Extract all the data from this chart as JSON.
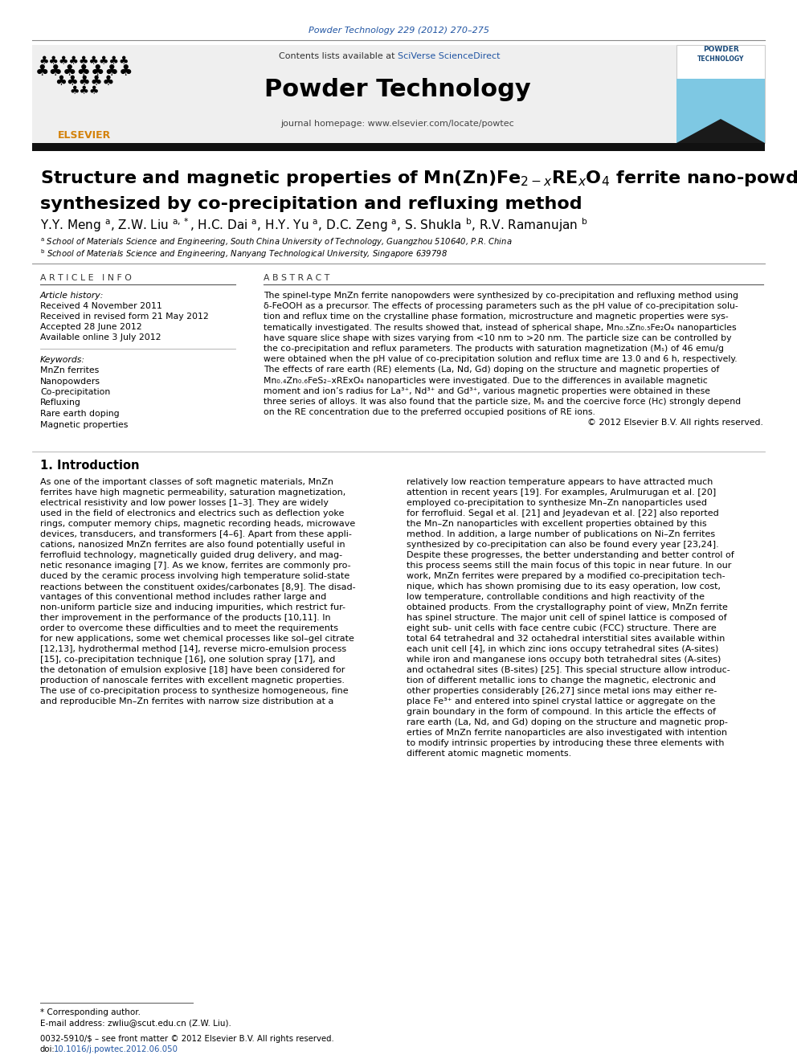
{
  "journal_ref": "Powder Technology 229 (2012) 270–275",
  "journal_ref_color": "#2155a3",
  "contents_line": "Contents lists available at ",
  "sciverse_text": "SciVerse ScienceDirect",
  "sciverse_color": "#2155a3",
  "journal_name": "Powder Technology",
  "journal_homepage": "journal homepage: www.elsevier.com/locate/powtec",
  "article_info_header": "A R T I C L E   I N F O",
  "abstract_header": "A B S T R A C T",
  "article_history_label": "Article history:",
  "received1": "Received 4 November 2011",
  "received2": "Received in revised form 21 May 2012",
  "accepted": "Accepted 28 June 2012",
  "available": "Available online 3 July 2012",
  "keywords_label": "Keywords:",
  "keywords": [
    "MnZn ferrites",
    "Nanopowders",
    "Co-precipitation",
    "Refluxing",
    "Rare earth doping",
    "Magnetic properties"
  ],
  "intro_header": "1. Introduction",
  "footnote_corresponding": "* Corresponding author.",
  "footnote_email": "E-mail address: zwliu@scut.edu.cn (Z.W. Liu).",
  "footer1": "0032-5910/$ – see front matter © 2012 Elsevier B.V. All rights reserved.",
  "footer2_prefix": "doi:",
  "footer2_link": "10.1016/j.powtec.2012.06.050",
  "bg_color": "#ffffff",
  "header_bg": "#f0f0f0",
  "text_color": "#000000",
  "blue_color": "#2155a3",
  "intro_col1_lines": [
    "As one of the important classes of soft magnetic materials, MnZn",
    "ferrites have high magnetic permeability, saturation magnetization,",
    "electrical resistivity and low power losses [1–3]. They are widely",
    "used in the field of electronics and electrics such as deflection yoke",
    "rings, computer memory chips, magnetic recording heads, microwave",
    "devices, transducers, and transformers [4–6]. Apart from these appli-",
    "cations, nanosized MnZn ferrites are also found potentially useful in",
    "ferrofluid technology, magnetically guided drug delivery, and mag-",
    "netic resonance imaging [7]. As we know, ferrites are commonly pro-",
    "duced by the ceramic process involving high temperature solid-state",
    "reactions between the constituent oxides/carbonates [8,9]. The disad-",
    "vantages of this conventional method includes rather large and",
    "non-uniform particle size and inducing impurities, which restrict fur-",
    "ther improvement in the performance of the products [10,11]. In",
    "order to overcome these difficulties and to meet the requirements",
    "for new applications, some wet chemical processes like sol–gel citrate",
    "[12,13], hydrothermal method [14], reverse micro-emulsion process",
    "[15], co-precipitation technique [16], one solution spray [17], and",
    "the detonation of emulsion explosive [18] have been considered for",
    "production of nanoscale ferrites with excellent magnetic properties.",
    "The use of co-precipitation process to synthesize homogeneous, fine",
    "and reproducible Mn–Zn ferrites with narrow size distribution at a"
  ],
  "intro_col2_lines": [
    "relatively low reaction temperature appears to have attracted much",
    "attention in recent years [19]. For examples, Arulmurugan et al. [20]",
    "employed co-precipitation to synthesize Mn–Zn nanoparticles used",
    "for ferrofluid. Segal et al. [21] and Jeyadevan et al. [22] also reported",
    "the Mn–Zn nanoparticles with excellent properties obtained by this",
    "method. In addition, a large number of publications on Ni–Zn ferrites",
    "synthesized by co-precipitation can also be found every year [23,24].",
    "Despite these progresses, the better understanding and better control of",
    "this process seems still the main focus of this topic in near future. In our",
    "work, MnZn ferrites were prepared by a modified co-precipitation tech-",
    "nique, which has shown promising due to its easy operation, low cost,",
    "low temperature, controllable conditions and high reactivity of the",
    "obtained products. From the crystallography point of view, MnZn ferrite",
    "has spinel structure. The major unit cell of spinel lattice is composed of",
    "eight sub- unit cells with face centre cubic (FCC) structure. There are",
    "total 64 tetrahedral and 32 octahedral interstitial sites available within",
    "each unit cell [4], in which zinc ions occupy tetrahedral sites (A-sites)",
    "while iron and manganese ions occupy both tetrahedral sites (A-sites)",
    "and octahedral sites (B-sites) [25]. This special structure allow introduc-",
    "tion of different metallic ions to change the magnetic, electronic and",
    "other properties considerably [26,27] since metal ions may either re-",
    "place Fe³⁺ and entered into spinel crystal lattice or aggregate on the",
    "grain boundary in the form of compound. In this article the effects of",
    "rare earth (La, Nd, and Gd) doping on the structure and magnetic prop-",
    "erties of MnZn ferrite nanoparticles are also investigated with intention",
    "to modify intrinsic properties by introducing these three elements with",
    "different atomic magnetic moments."
  ],
  "abstract_lines": [
    "The spinel-type MnZn ferrite nanopowders were synthesized by co-precipitation and refluxing method using",
    "δ-FeOOH as a precursor. The effects of processing parameters such as the pH value of co-precipitation solu-",
    "tion and reflux time on the crystalline phase formation, microstructure and magnetic properties were sys-",
    "tematically investigated. The results showed that, instead of spherical shape, Mn₀.₅Zn₀.₅Fe₂O₄ nanoparticles",
    "have square slice shape with sizes varying from <10 nm to >20 nm. The particle size can be controlled by",
    "the co-precipitation and reflux parameters. The products with saturation magnetization (Mₛ) of 46 emu/g",
    "were obtained when the pH value of co-precipitation solution and reflux time are 13.0 and 6 h, respectively.",
    "The effects of rare earth (RE) elements (La, Nd, Gd) doping on the structure and magnetic properties of",
    "Mn₀.₄Zn₀.₆FeS₂₋xRExO₄ nanoparticles were investigated. Due to the differences in available magnetic",
    "moment and ion’s radius for La³⁺, Nd³⁺ and Gd³⁺, various magnetic properties were obtained in these",
    "three series of alloys. It was also found that the particle size, Mₛ and the coercive force (Hᴄ) strongly depend",
    "on the RE concentration due to the preferred occupied positions of RE ions.",
    "© 2012 Elsevier B.V. All rights reserved."
  ]
}
